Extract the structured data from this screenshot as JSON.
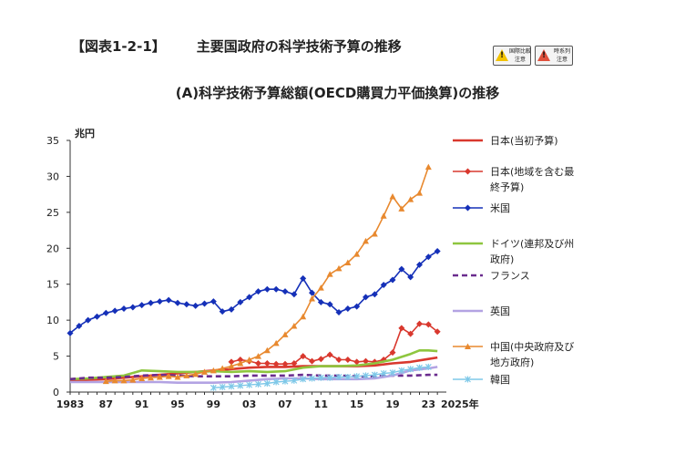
{
  "figure": {
    "code": "【図表1-2-1】",
    "title": "主要国政府の科学技術予算の推移",
    "subtitle": "(A)科学技術予算総額(OECD購買力平価換算)の推移",
    "badges": [
      {
        "label_line1": "国際比較",
        "label_line2": "注意",
        "icon": "warning-icon",
        "color": "#f2c200"
      },
      {
        "label_line1": "時系列",
        "label_line2": "注意",
        "icon": "warning-icon",
        "color": "#e0503c"
      }
    ]
  },
  "chart_data": {
    "type": "line",
    "ylabel": "兆円",
    "xlabel": "年",
    "ylim": [
      0,
      35
    ],
    "xlim": [
      1983,
      2025
    ],
    "yticks": [
      0,
      5,
      10,
      15,
      20,
      25,
      30,
      35
    ],
    "xticks": [
      {
        "value": 1983,
        "label": "1983"
      },
      {
        "value": 1987,
        "label": "87"
      },
      {
        "value": 1991,
        "label": "91"
      },
      {
        "value": 1995,
        "label": "95"
      },
      {
        "value": 1999,
        "label": "99"
      },
      {
        "value": 2003,
        "label": "03"
      },
      {
        "value": 2007,
        "label": "07"
      },
      {
        "value": 2011,
        "label": "11"
      },
      {
        "value": 2015,
        "label": "15"
      },
      {
        "value": 2019,
        "label": "19"
      },
      {
        "value": 2023,
        "label": "23"
      },
      {
        "value": 2025,
        "label": "2025年"
      }
    ],
    "grid": false,
    "legend_position": "right",
    "series": [
      {
        "name": "日本(当初予算)",
        "color": "#d9382e",
        "marker": "none",
        "dash": "none",
        "width": 2.6,
        "points": [
          [
            1983,
            1.6
          ],
          [
            1985,
            1.7
          ],
          [
            1987,
            1.8
          ],
          [
            1989,
            2.0
          ],
          [
            1991,
            2.2
          ],
          [
            1993,
            2.4
          ],
          [
            1995,
            2.6
          ],
          [
            1997,
            2.8
          ],
          [
            1999,
            3.0
          ],
          [
            2001,
            3.2
          ],
          [
            2003,
            3.4
          ],
          [
            2005,
            3.5
          ],
          [
            2007,
            3.5
          ],
          [
            2009,
            3.6
          ],
          [
            2011,
            3.6
          ],
          [
            2013,
            3.6
          ],
          [
            2015,
            3.6
          ],
          [
            2017,
            3.7
          ],
          [
            2019,
            4.0
          ],
          [
            2021,
            4.2
          ],
          [
            2023,
            4.6
          ],
          [
            2024,
            4.8
          ]
        ]
      },
      {
        "name": "日本(地域を含む最終予算)",
        "color": "#d9382e",
        "marker": "diamond",
        "dash": "none",
        "width": 1.6,
        "points": [
          [
            2001,
            4.2
          ],
          [
            2002,
            4.5
          ],
          [
            2003,
            4.3
          ],
          [
            2004,
            4.0
          ],
          [
            2005,
            4.0
          ],
          [
            2006,
            3.9
          ],
          [
            2007,
            3.9
          ],
          [
            2008,
            4.0
          ],
          [
            2009,
            5.0
          ],
          [
            2010,
            4.3
          ],
          [
            2011,
            4.6
          ],
          [
            2012,
            5.2
          ],
          [
            2013,
            4.5
          ],
          [
            2014,
            4.5
          ],
          [
            2015,
            4.2
          ],
          [
            2016,
            4.3
          ],
          [
            2017,
            4.2
          ],
          [
            2018,
            4.5
          ],
          [
            2019,
            5.5
          ],
          [
            2020,
            8.9
          ],
          [
            2021,
            8.1
          ],
          [
            2022,
            9.5
          ],
          [
            2023,
            9.4
          ],
          [
            2024,
            8.4
          ]
        ]
      },
      {
        "name": "米国",
        "color": "#1530b8",
        "marker": "diamond",
        "dash": "none",
        "width": 1.6,
        "points": [
          [
            1983,
            8.2
          ],
          [
            1984,
            9.2
          ],
          [
            1985,
            10.0
          ],
          [
            1986,
            10.5
          ],
          [
            1987,
            11.0
          ],
          [
            1988,
            11.3
          ],
          [
            1989,
            11.6
          ],
          [
            1990,
            11.8
          ],
          [
            1991,
            12.1
          ],
          [
            1992,
            12.4
          ],
          [
            1993,
            12.6
          ],
          [
            1994,
            12.8
          ],
          [
            1995,
            12.4
          ],
          [
            1996,
            12.2
          ],
          [
            1997,
            12.0
          ],
          [
            1998,
            12.3
          ],
          [
            1999,
            12.6
          ],
          [
            2000,
            11.2
          ],
          [
            2001,
            11.5
          ],
          [
            2002,
            12.5
          ],
          [
            2003,
            13.2
          ],
          [
            2004,
            14.0
          ],
          [
            2005,
            14.3
          ],
          [
            2006,
            14.3
          ],
          [
            2007,
            14.0
          ],
          [
            2008,
            13.6
          ],
          [
            2009,
            15.8
          ],
          [
            2010,
            13.8
          ],
          [
            2011,
            12.5
          ],
          [
            2012,
            12.2
          ],
          [
            2013,
            11.1
          ],
          [
            2014,
            11.6
          ],
          [
            2015,
            11.9
          ],
          [
            2016,
            13.2
          ],
          [
            2017,
            13.6
          ],
          [
            2018,
            14.9
          ],
          [
            2019,
            15.6
          ],
          [
            2020,
            17.1
          ],
          [
            2021,
            16.0
          ],
          [
            2022,
            17.7
          ],
          [
            2023,
            18.8
          ],
          [
            2024,
            19.6
          ]
        ]
      },
      {
        "name": "ドイツ(連邦及び州政府)",
        "color": "#8ec63f",
        "marker": "none",
        "dash": "none",
        "width": 2.6,
        "points": [
          [
            1983,
            1.8
          ],
          [
            1985,
            1.9
          ],
          [
            1987,
            2.1
          ],
          [
            1989,
            2.3
          ],
          [
            1991,
            3.0
          ],
          [
            1993,
            2.9
          ],
          [
            1995,
            2.8
          ],
          [
            1997,
            2.8
          ],
          [
            1999,
            2.9
          ],
          [
            2001,
            2.8
          ],
          [
            2003,
            2.9
          ],
          [
            2005,
            2.8
          ],
          [
            2007,
            2.9
          ],
          [
            2009,
            3.4
          ],
          [
            2011,
            3.6
          ],
          [
            2013,
            3.6
          ],
          [
            2015,
            3.7
          ],
          [
            2017,
            4.0
          ],
          [
            2019,
            4.5
          ],
          [
            2021,
            5.3
          ],
          [
            2022,
            5.8
          ],
          [
            2023,
            5.8
          ],
          [
            2024,
            5.7
          ]
        ]
      },
      {
        "name": "フランス",
        "color": "#6a2c8e",
        "marker": "none",
        "dash": "dash",
        "width": 2.6,
        "points": [
          [
            1983,
            1.8
          ],
          [
            1985,
            2.0
          ],
          [
            1987,
            2.0
          ],
          [
            1989,
            2.1
          ],
          [
            1991,
            2.3
          ],
          [
            1993,
            2.4
          ],
          [
            1995,
            2.3
          ],
          [
            1997,
            2.2
          ],
          [
            1999,
            2.2
          ],
          [
            2001,
            2.2
          ],
          [
            2003,
            2.3
          ],
          [
            2005,
            2.3
          ],
          [
            2007,
            2.3
          ],
          [
            2009,
            2.4
          ],
          [
            2011,
            2.3
          ],
          [
            2013,
            2.3
          ],
          [
            2015,
            2.2
          ],
          [
            2017,
            2.2
          ],
          [
            2019,
            2.3
          ],
          [
            2021,
            2.3
          ],
          [
            2023,
            2.4
          ],
          [
            2024,
            2.4
          ]
        ]
      },
      {
        "name": "英国",
        "color": "#b3a3e3",
        "marker": "none",
        "dash": "none",
        "width": 2.6,
        "points": [
          [
            1983,
            1.4
          ],
          [
            1985,
            1.4
          ],
          [
            1987,
            1.4
          ],
          [
            1989,
            1.4
          ],
          [
            1991,
            1.4
          ],
          [
            1993,
            1.4
          ],
          [
            1995,
            1.3
          ],
          [
            1997,
            1.3
          ],
          [
            1999,
            1.3
          ],
          [
            2001,
            1.4
          ],
          [
            2003,
            1.6
          ],
          [
            2005,
            1.8
          ],
          [
            2007,
            1.9
          ],
          [
            2009,
            1.9
          ],
          [
            2011,
            1.8
          ],
          [
            2013,
            1.8
          ],
          [
            2015,
            1.8
          ],
          [
            2017,
            1.9
          ],
          [
            2019,
            2.3
          ],
          [
            2021,
            3.0
          ],
          [
            2023,
            3.3
          ],
          [
            2024,
            3.5
          ]
        ]
      },
      {
        "name": "中国(中央政府及び地方政府)",
        "color": "#e8892f",
        "marker": "triangle",
        "dash": "none",
        "width": 1.6,
        "points": [
          [
            1987,
            1.5
          ],
          [
            1988,
            1.6
          ],
          [
            1989,
            1.6
          ],
          [
            1990,
            1.7
          ],
          [
            1991,
            1.9
          ],
          [
            1992,
            2.0
          ],
          [
            1993,
            2.1
          ],
          [
            1994,
            2.2
          ],
          [
            1995,
            2.1
          ],
          [
            1996,
            2.3
          ],
          [
            1997,
            2.5
          ],
          [
            1998,
            2.8
          ],
          [
            1999,
            3.0
          ],
          [
            2000,
            3.3
          ],
          [
            2001,
            3.6
          ],
          [
            2002,
            4.0
          ],
          [
            2003,
            4.5
          ],
          [
            2004,
            5.0
          ],
          [
            2005,
            5.8
          ],
          [
            2006,
            6.8
          ],
          [
            2007,
            8.0
          ],
          [
            2008,
            9.2
          ],
          [
            2009,
            10.5
          ],
          [
            2010,
            13.0
          ],
          [
            2011,
            14.5
          ],
          [
            2012,
            16.4
          ],
          [
            2013,
            17.2
          ],
          [
            2014,
            18.0
          ],
          [
            2015,
            19.2
          ],
          [
            2016,
            21.0
          ],
          [
            2017,
            22.0
          ],
          [
            2018,
            24.5
          ],
          [
            2019,
            27.2
          ],
          [
            2020,
            25.5
          ],
          [
            2021,
            26.8
          ],
          [
            2022,
            27.7
          ],
          [
            2023,
            31.3
          ]
        ]
      },
      {
        "name": "韓国",
        "color": "#7ec8e8",
        "marker": "x",
        "dash": "none",
        "width": 1.4,
        "points": [
          [
            1999,
            0.6
          ],
          [
            2000,
            0.7
          ],
          [
            2001,
            0.8
          ],
          [
            2002,
            0.9
          ],
          [
            2003,
            1.0
          ],
          [
            2004,
            1.1
          ],
          [
            2005,
            1.2
          ],
          [
            2006,
            1.4
          ],
          [
            2007,
            1.5
          ],
          [
            2008,
            1.6
          ],
          [
            2009,
            1.8
          ],
          [
            2010,
            1.9
          ],
          [
            2011,
            2.0
          ],
          [
            2012,
            2.0
          ],
          [
            2013,
            2.1
          ],
          [
            2014,
            2.1
          ],
          [
            2015,
            2.2
          ],
          [
            2016,
            2.3
          ],
          [
            2017,
            2.4
          ],
          [
            2018,
            2.6
          ],
          [
            2019,
            2.7
          ],
          [
            2020,
            3.0
          ],
          [
            2021,
            3.2
          ],
          [
            2022,
            3.4
          ],
          [
            2023,
            3.5
          ]
        ]
      }
    ]
  }
}
